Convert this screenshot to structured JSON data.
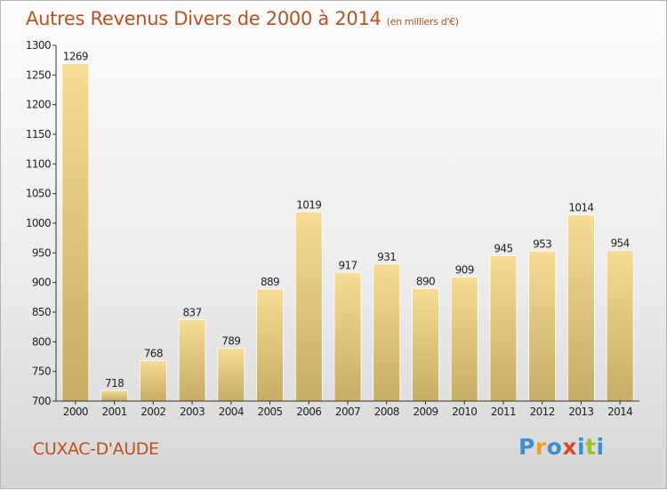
{
  "chart_data": {
    "type": "bar",
    "title": "Autres Revenus Divers de 2000 à 2014",
    "subtitle": "(en milliers d'€)",
    "categories": [
      "2000",
      "2001",
      "2002",
      "2003",
      "2004",
      "2005",
      "2006",
      "2007",
      "2008",
      "2009",
      "2010",
      "2011",
      "2012",
      "2013",
      "2014"
    ],
    "values": [
      1269,
      718,
      768,
      837,
      789,
      889,
      1019,
      917,
      931,
      890,
      909,
      945,
      953,
      1014,
      954
    ],
    "ylim": [
      700,
      1300
    ],
    "yticks": [
      700,
      750,
      800,
      850,
      900,
      950,
      1000,
      1050,
      1100,
      1150,
      1200,
      1250,
      1300
    ],
    "xlabel": "",
    "ylabel": "",
    "grid": false,
    "legend": "none",
    "bar_colors": {
      "top": "#f7dc95",
      "bottom": "#c7ac66"
    }
  },
  "place_name": "CUXAC-D'AUDE",
  "logo": {
    "letters": [
      "P",
      "r",
      "o",
      "x",
      "i",
      "t",
      "i"
    ],
    "text": "Proxiti"
  },
  "colors": {
    "title": "#c0501e",
    "axis": "#333333",
    "tick_text": "#222222"
  }
}
